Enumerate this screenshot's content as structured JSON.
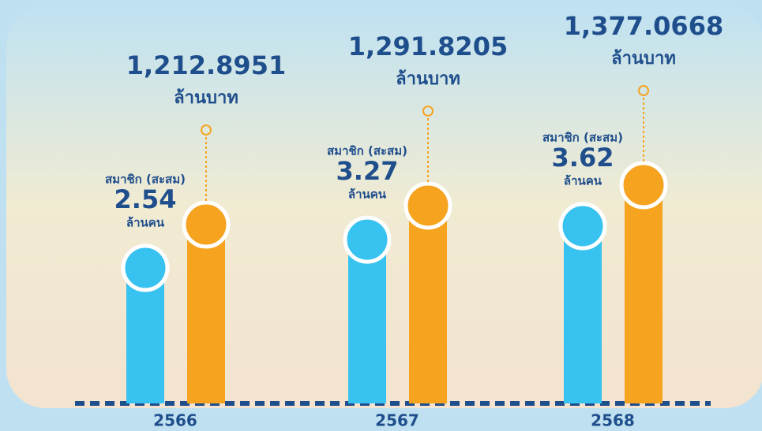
{
  "chart_data": {
    "type": "bar",
    "categories": [
      "2566",
      "2567",
      "2568"
    ],
    "series": [
      {
        "name": "สมาชิก (สะสม)",
        "unit": "ล้านคน",
        "color": "#38c2f0",
        "values": [
          2.54,
          3.27,
          3.62
        ]
      },
      {
        "unit": "ล้านบาท",
        "color": "#f6a31f",
        "values": [
          1212.8951,
          1291.8205,
          1377.0668
        ],
        "value_labels": [
          "1,212.8951",
          "1,291.8205",
          "1,377.0668"
        ]
      }
    ]
  }
}
